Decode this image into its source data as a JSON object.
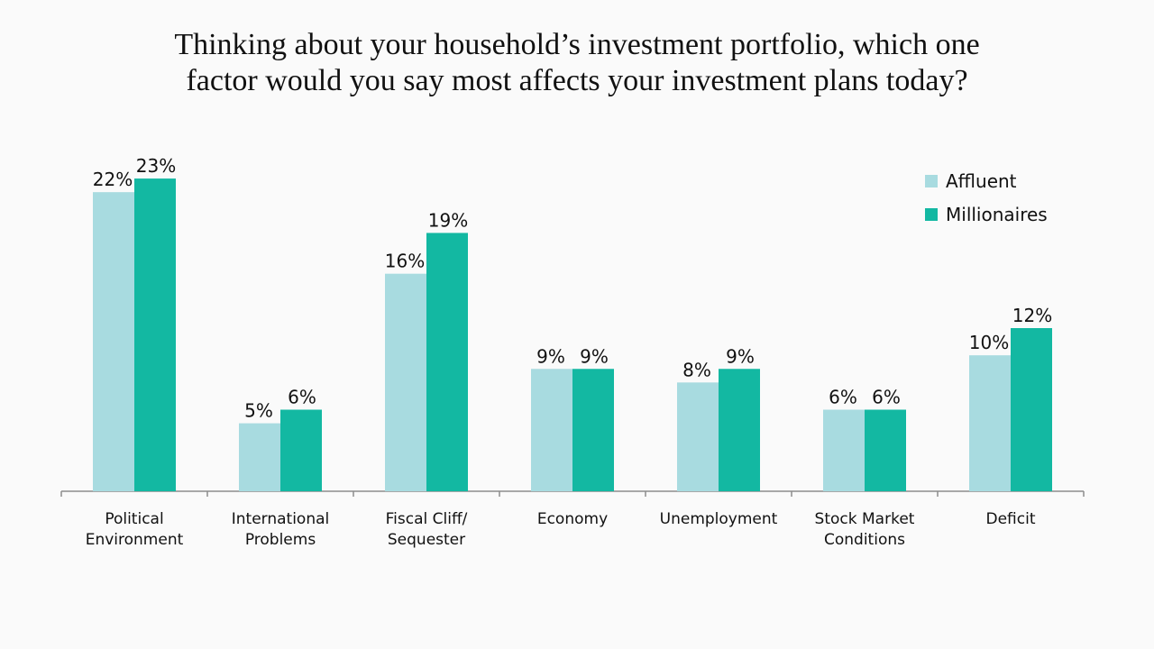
{
  "title_lines": [
    "Thinking about your household’s investment portfolio, which one",
    "factor would you say most affects your investment plans today?"
  ],
  "colors": {
    "affluent": "#a8dbe0",
    "millionaires": "#13b8a2",
    "axis": "#8c8c8c"
  },
  "chart_data": {
    "type": "bar",
    "categories": [
      [
        "Political",
        "Environment"
      ],
      [
        "International",
        "Problems"
      ],
      [
        "Fiscal Cliff/",
        "Sequester"
      ],
      [
        "Economy"
      ],
      [
        "Unemployment"
      ],
      [
        "Stock Market",
        "Conditions"
      ],
      [
        "Deficit"
      ]
    ],
    "series": [
      {
        "name": "Affluent",
        "values": [
          22,
          5,
          16,
          9,
          8,
          6,
          10
        ],
        "labels": [
          "22%",
          "5%",
          "16%",
          "9%",
          "8%",
          "6%",
          "10%"
        ]
      },
      {
        "name": "Millionaires",
        "values": [
          23,
          6,
          19,
          9,
          9,
          6,
          12
        ],
        "labels": [
          "23%",
          "6%",
          "19%",
          "9%",
          "9%",
          "6%",
          "12%"
        ]
      }
    ],
    "ylim": [
      0,
      24
    ],
    "legend_position": "top-right",
    "grid": false
  }
}
